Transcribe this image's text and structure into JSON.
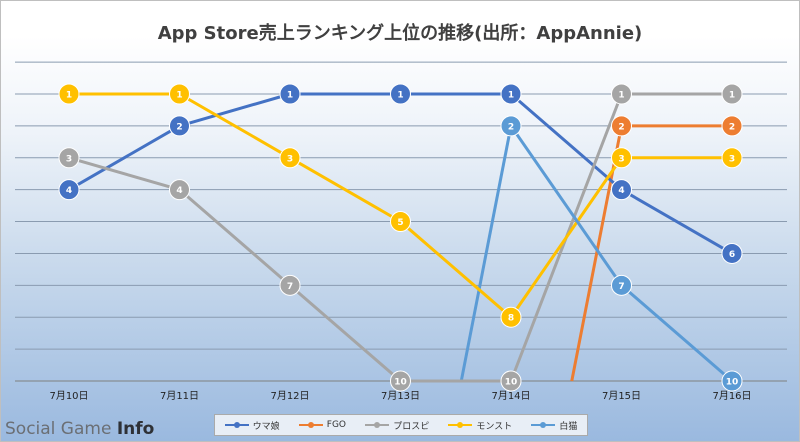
{
  "chart_data": {
    "type": "line",
    "title": "App Store売上ランキング上位の推移(出所：AppAnnie)",
    "categories": [
      "7月10日",
      "7月11日",
      "7月12日",
      "7月13日",
      "7月14日",
      "7月15日",
      "7月16日"
    ],
    "ylim": [
      1,
      10
    ],
    "y_reversed": true,
    "grid": true,
    "legend_position": "bottom",
    "series": [
      {
        "name": "ウマ娘",
        "color": "#4472c4",
        "values": [
          4,
          2,
          1,
          1,
          1,
          4,
          6
        ]
      },
      {
        "name": "FGO",
        "color": "#ed7d31",
        "values": [
          null,
          null,
          null,
          null,
          null,
          2,
          2
        ]
      },
      {
        "name": "プロスピ",
        "color": "#a5a5a5",
        "values": [
          3,
          4,
          7,
          10,
          10,
          1,
          1
        ]
      },
      {
        "name": "モンスト",
        "color": "#ffc000",
        "values": [
          1,
          1,
          3,
          5,
          8,
          3,
          3
        ]
      },
      {
        "name": "白猫",
        "color": "#5b9bd5",
        "values": [
          null,
          null,
          null,
          null,
          2,
          7,
          10
        ]
      }
    ],
    "offscale_segments": [
      {
        "series": "FGO",
        "from_category": "7月14日",
        "to_category": "7月15日",
        "to_value": 2
      },
      {
        "series": "白猫",
        "from_category": "7月13日",
        "to_category": "7月14日",
        "to_value": 2
      }
    ]
  },
  "watermark": {
    "text1": "Social Game ",
    "text2": "Info"
  }
}
